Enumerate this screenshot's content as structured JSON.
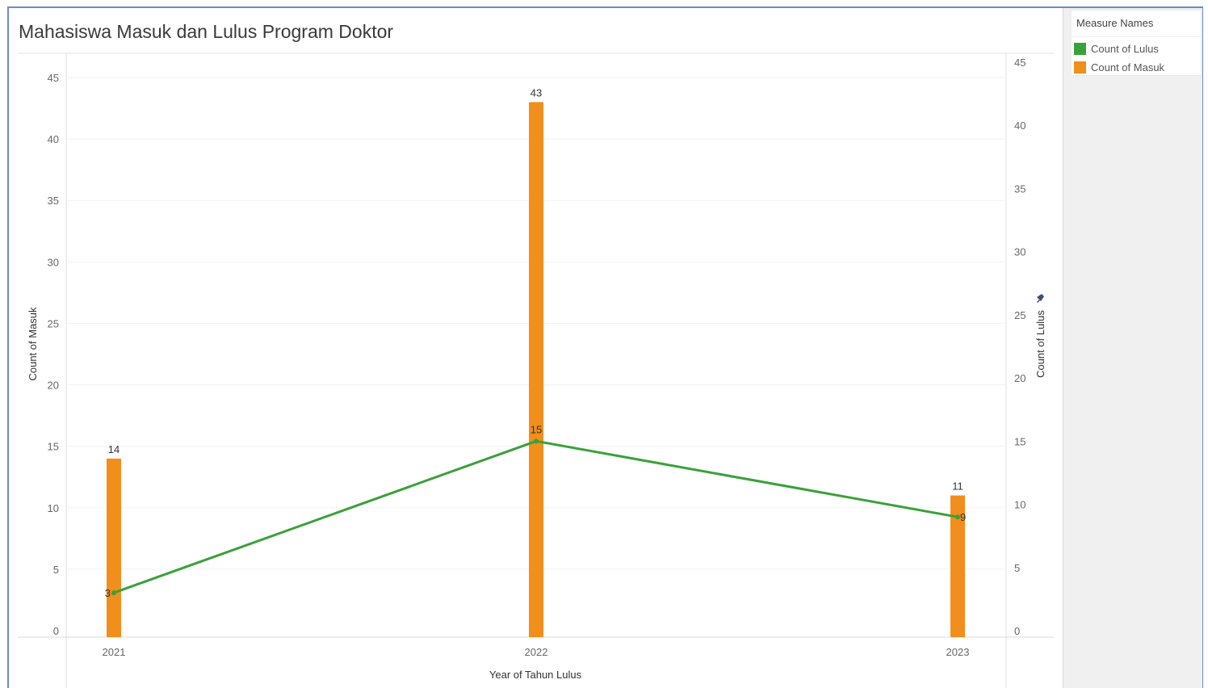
{
  "chart_data": {
    "type": "bar",
    "title": "Mahasiswa Masuk dan Lulus Program Doktor",
    "xlabel": "Year of Tahun Lulus",
    "ylabel": "Count of Masuk",
    "y2label": "Count of Lulus",
    "categories": [
      "2021",
      "2022",
      "2023"
    ],
    "ylim": [
      0,
      45
    ],
    "y2lim": [
      0,
      45
    ],
    "yticks": [
      0,
      5,
      10,
      15,
      20,
      25,
      30,
      35,
      40,
      45
    ],
    "grid": true,
    "legend_position": "right",
    "series": [
      {
        "name": "Count of Masuk",
        "type": "bar",
        "axis": "left",
        "values": [
          14,
          43,
          11
        ],
        "labels": [
          "14",
          "43",
          "11"
        ],
        "color": "#f28e1c"
      },
      {
        "name": "Count of Lulus",
        "type": "line",
        "axis": "right",
        "values": [
          3,
          15,
          9
        ],
        "labels": [
          "3",
          "15",
          "9"
        ],
        "color": "#3aa13a"
      }
    ]
  },
  "legend": {
    "title": "Measure Names",
    "items": [
      {
        "label": "Count of Lulus",
        "color": "#3aa13a"
      },
      {
        "label": "Count of Masuk",
        "color": "#f28e1c"
      }
    ]
  },
  "icons": {
    "pin": "pin-icon"
  }
}
